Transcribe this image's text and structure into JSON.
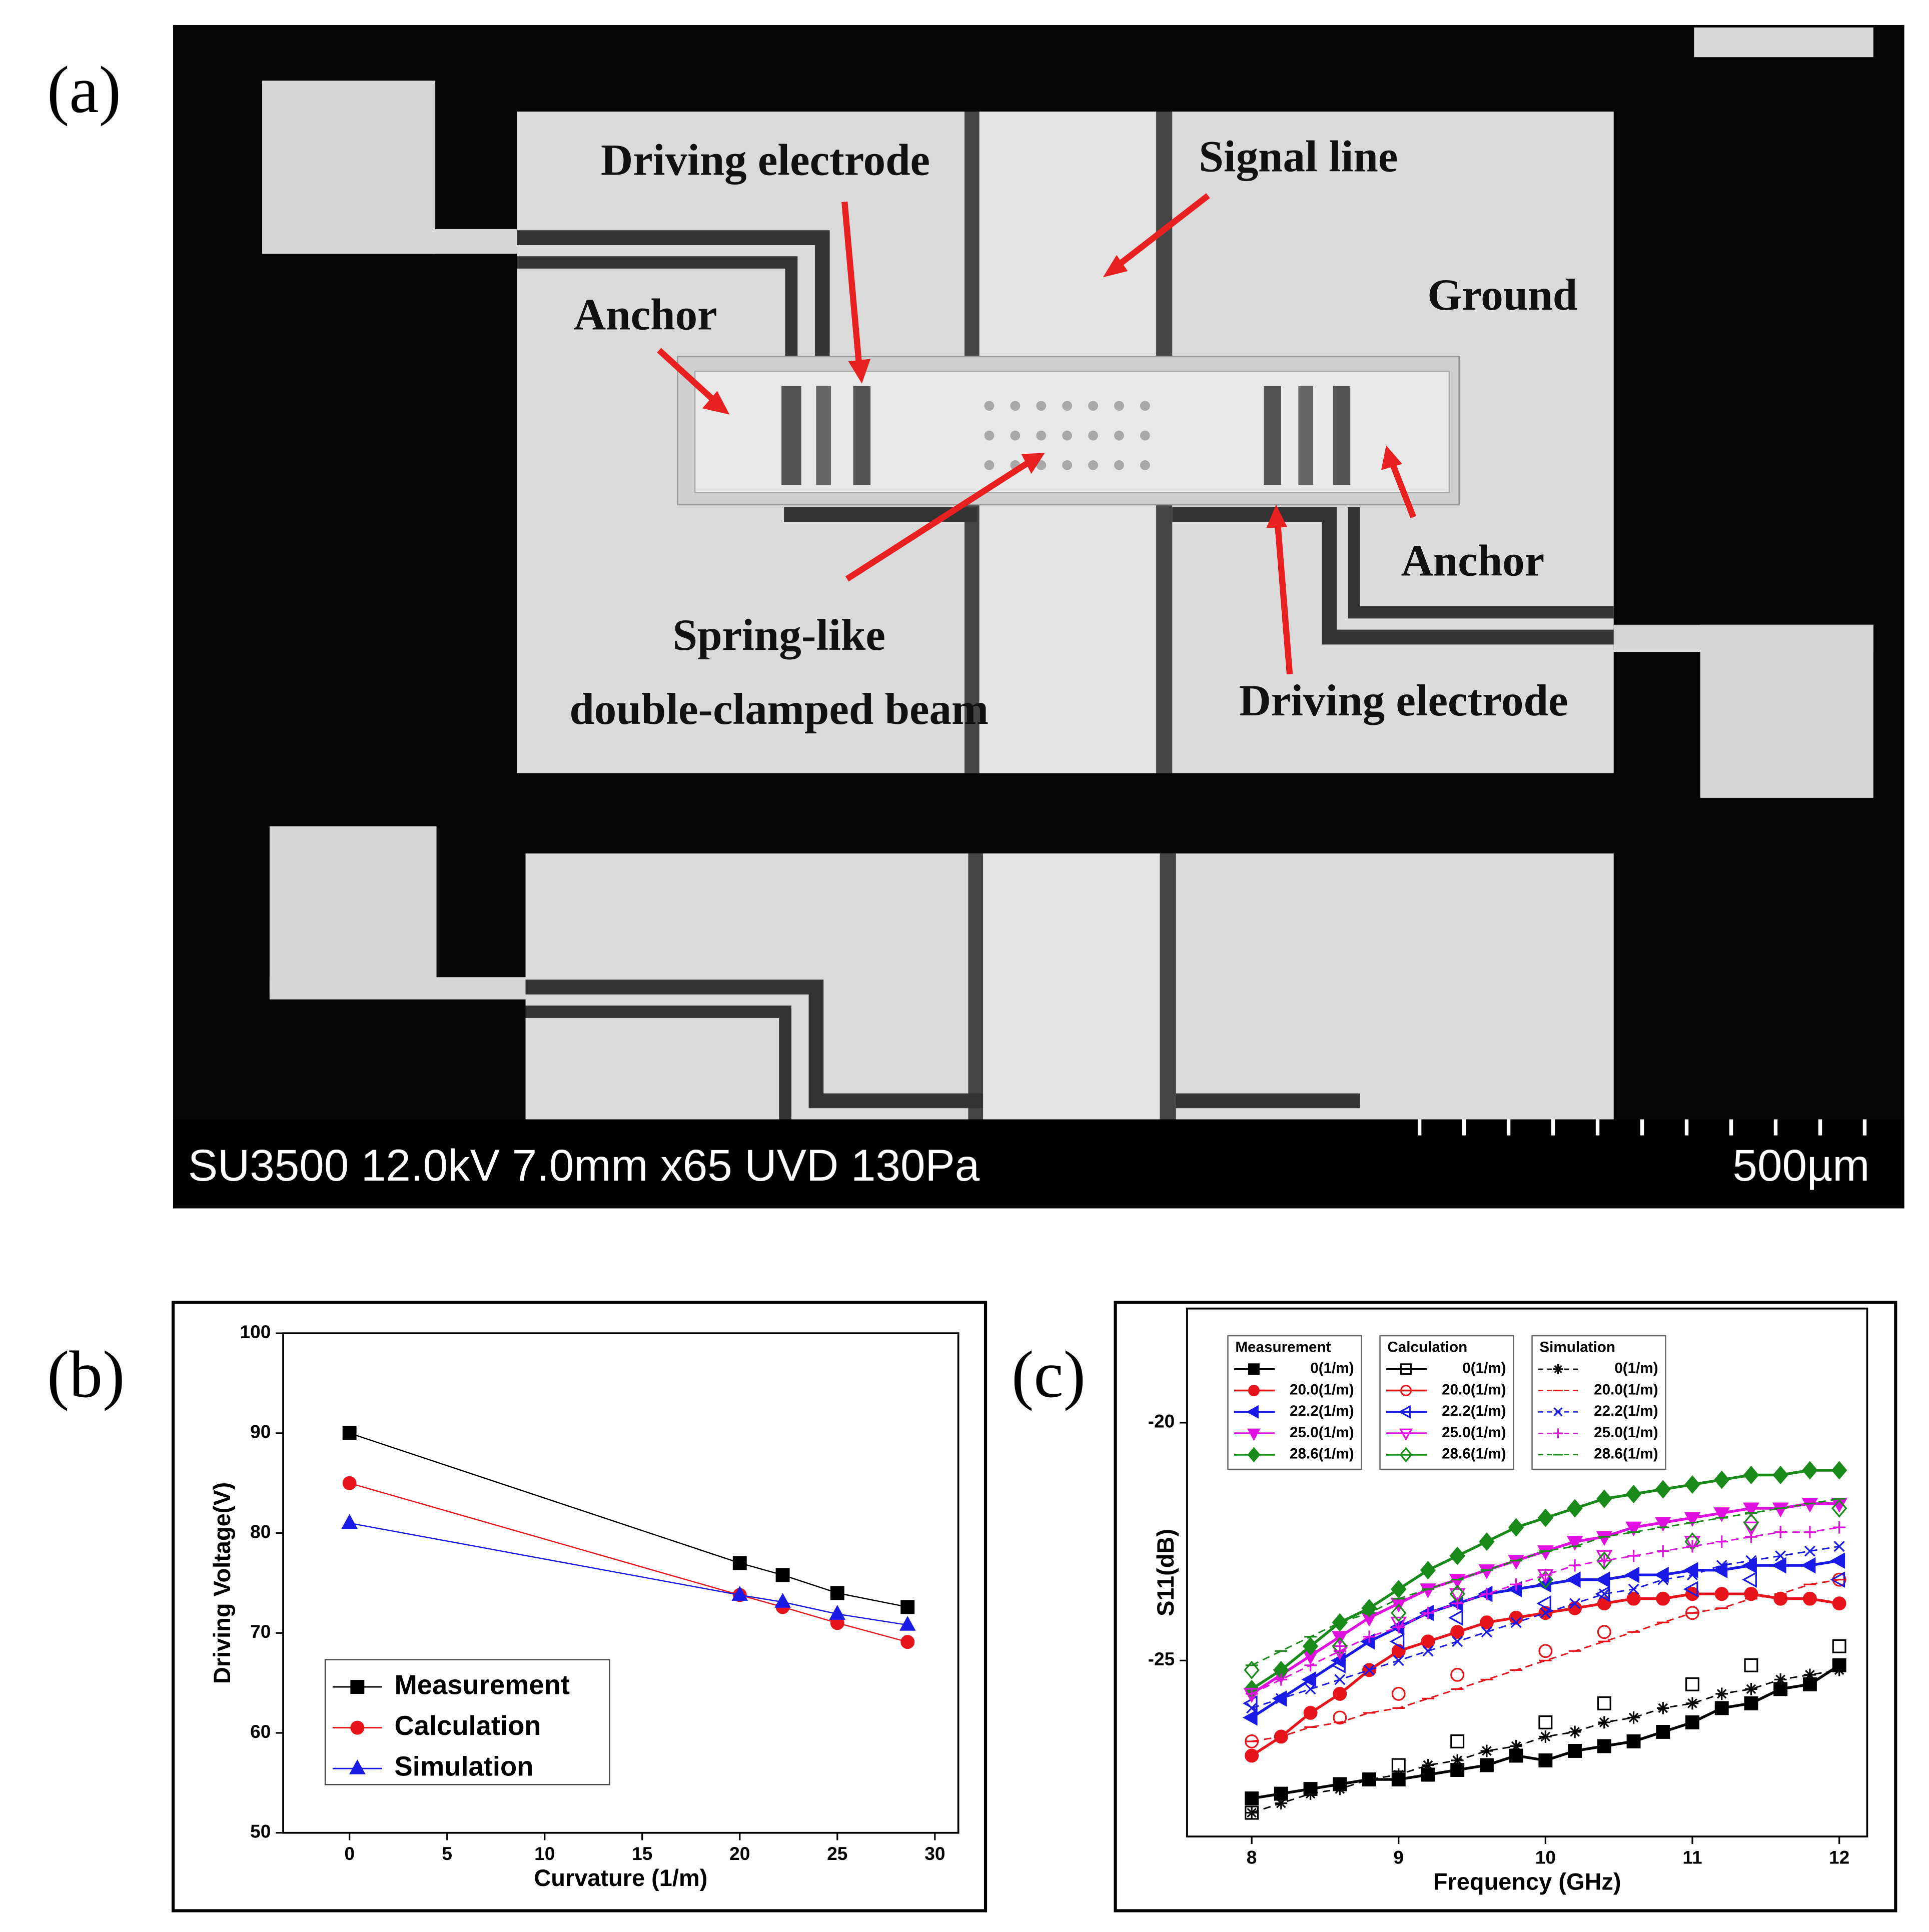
{
  "panels": [
    "(a)",
    "(b)",
    "(c)"
  ],
  "sem_image": {
    "annotations": [
      "Driving electrode",
      "Signal line",
      "Ground",
      "Anchor",
      "Anchor",
      "Spring-like",
      "double-clamped beam",
      "Driving electrode"
    ],
    "info_bar": "SU3500 12.0kV 7.0mm x65 UVD 130Pa",
    "scale_bar": "500µm"
  },
  "chart_data": [
    {
      "type": "line",
      "x_label": "Curvature (1/m)",
      "y_label": "Driving Voltage(V)",
      "x": [
        0,
        20,
        22.2,
        25,
        28.6
      ],
      "xlim": [
        -3.4,
        31.2
      ],
      "xticks": [
        0,
        5,
        10,
        15,
        20,
        25,
        30
      ],
      "ylim": [
        50,
        100
      ],
      "yticks": [
        50,
        60,
        70,
        80,
        90,
        100
      ],
      "line": "solid",
      "filled": true,
      "legend": "lower left",
      "series": [
        {
          "name": "Measurement",
          "color": "#000000",
          "marker": "square",
          "values": [
            90,
            77,
            75.8,
            74,
            72.6
          ]
        },
        {
          "name": "Calculation",
          "color": "#e8141c",
          "marker": "circle",
          "values": [
            85,
            73.8,
            72.6,
            71,
            69.1
          ]
        },
        {
          "name": "Simulation",
          "color": "#1a1ae6",
          "marker": "triangle-up",
          "values": [
            81,
            73.8,
            73.1,
            71.9,
            70.8
          ]
        }
      ]
    },
    {
      "type": "line",
      "x_label": "Frequency (GHz)",
      "y_label": "S11(dB)",
      "x": [
        8,
        8.2,
        8.4,
        8.6,
        8.8,
        9,
        9.2,
        9.4,
        9.6,
        9.8,
        10,
        10.2,
        10.4,
        10.6,
        10.8,
        11,
        11.2,
        11.4,
        11.6,
        11.8,
        12
      ],
      "xlim": [
        7.56,
        12.19
      ],
      "xticks": [
        8,
        9,
        10,
        11,
        12
      ],
      "ylim": [
        -28.7,
        -17.6
      ],
      "yticks": [
        -25,
        -20
      ],
      "legend": "upper left",
      "groups": [
        {
          "name": "Measurement",
          "line": "solid",
          "filled": true,
          "series": [
            {
              "name": "0(1/m)",
              "color": "#000000",
              "marker": "square",
              "values": [
                -27.9,
                -27.8,
                -27.7,
                -27.6,
                -27.5,
                -27.5,
                -27.4,
                -27.3,
                -27.2,
                -27.0,
                -27.1,
                -26.9,
                -26.8,
                -26.7,
                -26.5,
                -26.3,
                -26.0,
                -25.9,
                -25.6,
                -25.5,
                -25.1
              ]
            },
            {
              "name": "20.0(1/m)",
              "color": "#e8141c",
              "marker": "circle",
              "values": [
                -27.0,
                -26.6,
                -26.1,
                -25.7,
                -25.2,
                -24.8,
                -24.6,
                -24.4,
                -24.2,
                -24.1,
                -24.0,
                -23.9,
                -23.8,
                -23.7,
                -23.7,
                -23.6,
                -23.6,
                -23.6,
                -23.7,
                -23.7,
                -23.8
              ]
            },
            {
              "name": "22.2(1/m)",
              "color": "#1a1ae6",
              "marker": "triangle-left",
              "values": [
                -26.2,
                -25.8,
                -25.4,
                -25.0,
                -24.6,
                -24.3,
                -24.0,
                -23.8,
                -23.6,
                -23.5,
                -23.4,
                -23.3,
                -23.3,
                -23.2,
                -23.2,
                -23.1,
                -23.1,
                -23.0,
                -23.0,
                -23.0,
                -22.9
              ]
            },
            {
              "name": "25.0(1/m)",
              "color": "#e010e0",
              "marker": "triangle-down",
              "values": [
                -25.7,
                -25.3,
                -24.9,
                -24.5,
                -24.1,
                -23.8,
                -23.5,
                -23.3,
                -23.1,
                -22.9,
                -22.7,
                -22.5,
                -22.4,
                -22.2,
                -22.1,
                -22.0,
                -21.9,
                -21.8,
                -21.8,
                -21.7,
                -21.7
              ]
            },
            {
              "name": "28.6(1/m)",
              "color": "#1a8a1a",
              "marker": "diamond",
              "values": [
                -25.6,
                -25.2,
                -24.7,
                -24.2,
                -23.9,
                -23.5,
                -23.1,
                -22.8,
                -22.5,
                -22.2,
                -22.0,
                -21.8,
                -21.6,
                -21.5,
                -21.4,
                -21.3,
                -21.2,
                -21.1,
                -21.1,
                -21.0,
                -21.0
              ]
            }
          ]
        },
        {
          "name": "Calculation",
          "line": "none",
          "filled": false,
          "series": [
            {
              "name": "0(1/m)",
              "color": "#000000",
              "marker": "square",
              "values": [
                -28.2,
                null,
                null,
                -27.6,
                null,
                -27.2,
                null,
                -26.7,
                null,
                null,
                -26.3,
                null,
                -25.9,
                null,
                null,
                -25.5,
                null,
                -25.1,
                null,
                null,
                -24.7
              ]
            },
            {
              "name": "20.0(1/m)",
              "color": "#e8141c",
              "marker": "circle",
              "values": [
                -26.7,
                null,
                null,
                -26.2,
                null,
                -25.7,
                null,
                -25.3,
                null,
                null,
                -24.8,
                null,
                -24.4,
                null,
                null,
                -24.0,
                null,
                -23.6,
                null,
                null,
                -23.3
              ]
            },
            {
              "name": "22.2(1/m)",
              "color": "#1a1ae6",
              "marker": "triangle-left",
              "values": [
                -25.9,
                null,
                null,
                -25.1,
                null,
                -24.6,
                null,
                -24.1,
                null,
                null,
                -23.8,
                null,
                -23.6,
                null,
                null,
                -23.5,
                null,
                -23.3,
                null,
                null,
                -23.3
              ]
            },
            {
              "name": "25.0(1/m)",
              "color": "#e010e0",
              "marker": "triangle-down",
              "values": [
                -25.7,
                null,
                null,
                -24.8,
                null,
                -24.2,
                null,
                -23.6,
                null,
                null,
                -23.2,
                null,
                -22.8,
                null,
                null,
                -22.5,
                null,
                -22.2,
                null,
                null,
                -21.7
              ]
            },
            {
              "name": "28.6(1/m)",
              "color": "#1a8a1a",
              "marker": "diamond",
              "values": [
                -25.2,
                null,
                null,
                -24.7,
                null,
                -24.0,
                null,
                -23.6,
                null,
                null,
                -23.3,
                null,
                -22.9,
                null,
                null,
                -22.5,
                null,
                -22.1,
                null,
                null,
                -21.8
              ]
            }
          ]
        },
        {
          "name": "Simulation",
          "line": "dashed",
          "filled": false,
          "series": [
            {
              "name": "0(1/m)",
              "color": "#000000",
              "marker": "star",
              "values": [
                -28.2,
                -28.0,
                -27.8,
                -27.7,
                -27.5,
                -27.4,
                -27.2,
                -27.1,
                -26.9,
                -26.8,
                -26.6,
                -26.5,
                -26.3,
                -26.2,
                -26.0,
                -25.9,
                -25.7,
                -25.6,
                -25.4,
                -25.3,
                -25.2
              ]
            },
            {
              "name": "20.0(1/m)",
              "color": "#e8141c",
              "marker": "dash",
              "values": [
                -26.7,
                -26.6,
                -26.4,
                -26.3,
                -26.1,
                -26.0,
                -25.8,
                -25.6,
                -25.4,
                -25.2,
                -25.0,
                -24.8,
                -24.6,
                -24.4,
                -24.2,
                -24.0,
                -23.9,
                -23.7,
                -23.6,
                -23.4,
                -23.3
              ]
            },
            {
              "name": "22.2(1/m)",
              "color": "#1a1ae6",
              "marker": "x",
              "values": [
                -26.0,
                -25.8,
                -25.6,
                -25.4,
                -25.2,
                -25.0,
                -24.8,
                -24.6,
                -24.4,
                -24.2,
                -24.0,
                -23.8,
                -23.6,
                -23.5,
                -23.3,
                -23.2,
                -23.0,
                -22.9,
                -22.8,
                -22.7,
                -22.6
              ]
            },
            {
              "name": "25.0(1/m)",
              "color": "#e010e0",
              "marker": "plus",
              "values": [
                -25.7,
                -25.4,
                -25.1,
                -24.8,
                -24.5,
                -24.3,
                -24.0,
                -23.8,
                -23.6,
                -23.4,
                -23.2,
                -23.0,
                -22.9,
                -22.8,
                -22.7,
                -22.6,
                -22.5,
                -22.4,
                -22.3,
                -22.3,
                -22.2
              ]
            },
            {
              "name": "28.6(1/m)",
              "color": "#1a8a1a",
              "marker": "dash",
              "values": [
                -25.1,
                -24.8,
                -24.5,
                -24.2,
                -24.0,
                -23.7,
                -23.5,
                -23.3,
                -23.1,
                -22.9,
                -22.7,
                -22.6,
                -22.4,
                -22.3,
                -22.2,
                -22.1,
                -22.0,
                -21.9,
                -21.8,
                -21.7,
                -21.6
              ]
            }
          ]
        }
      ]
    }
  ]
}
